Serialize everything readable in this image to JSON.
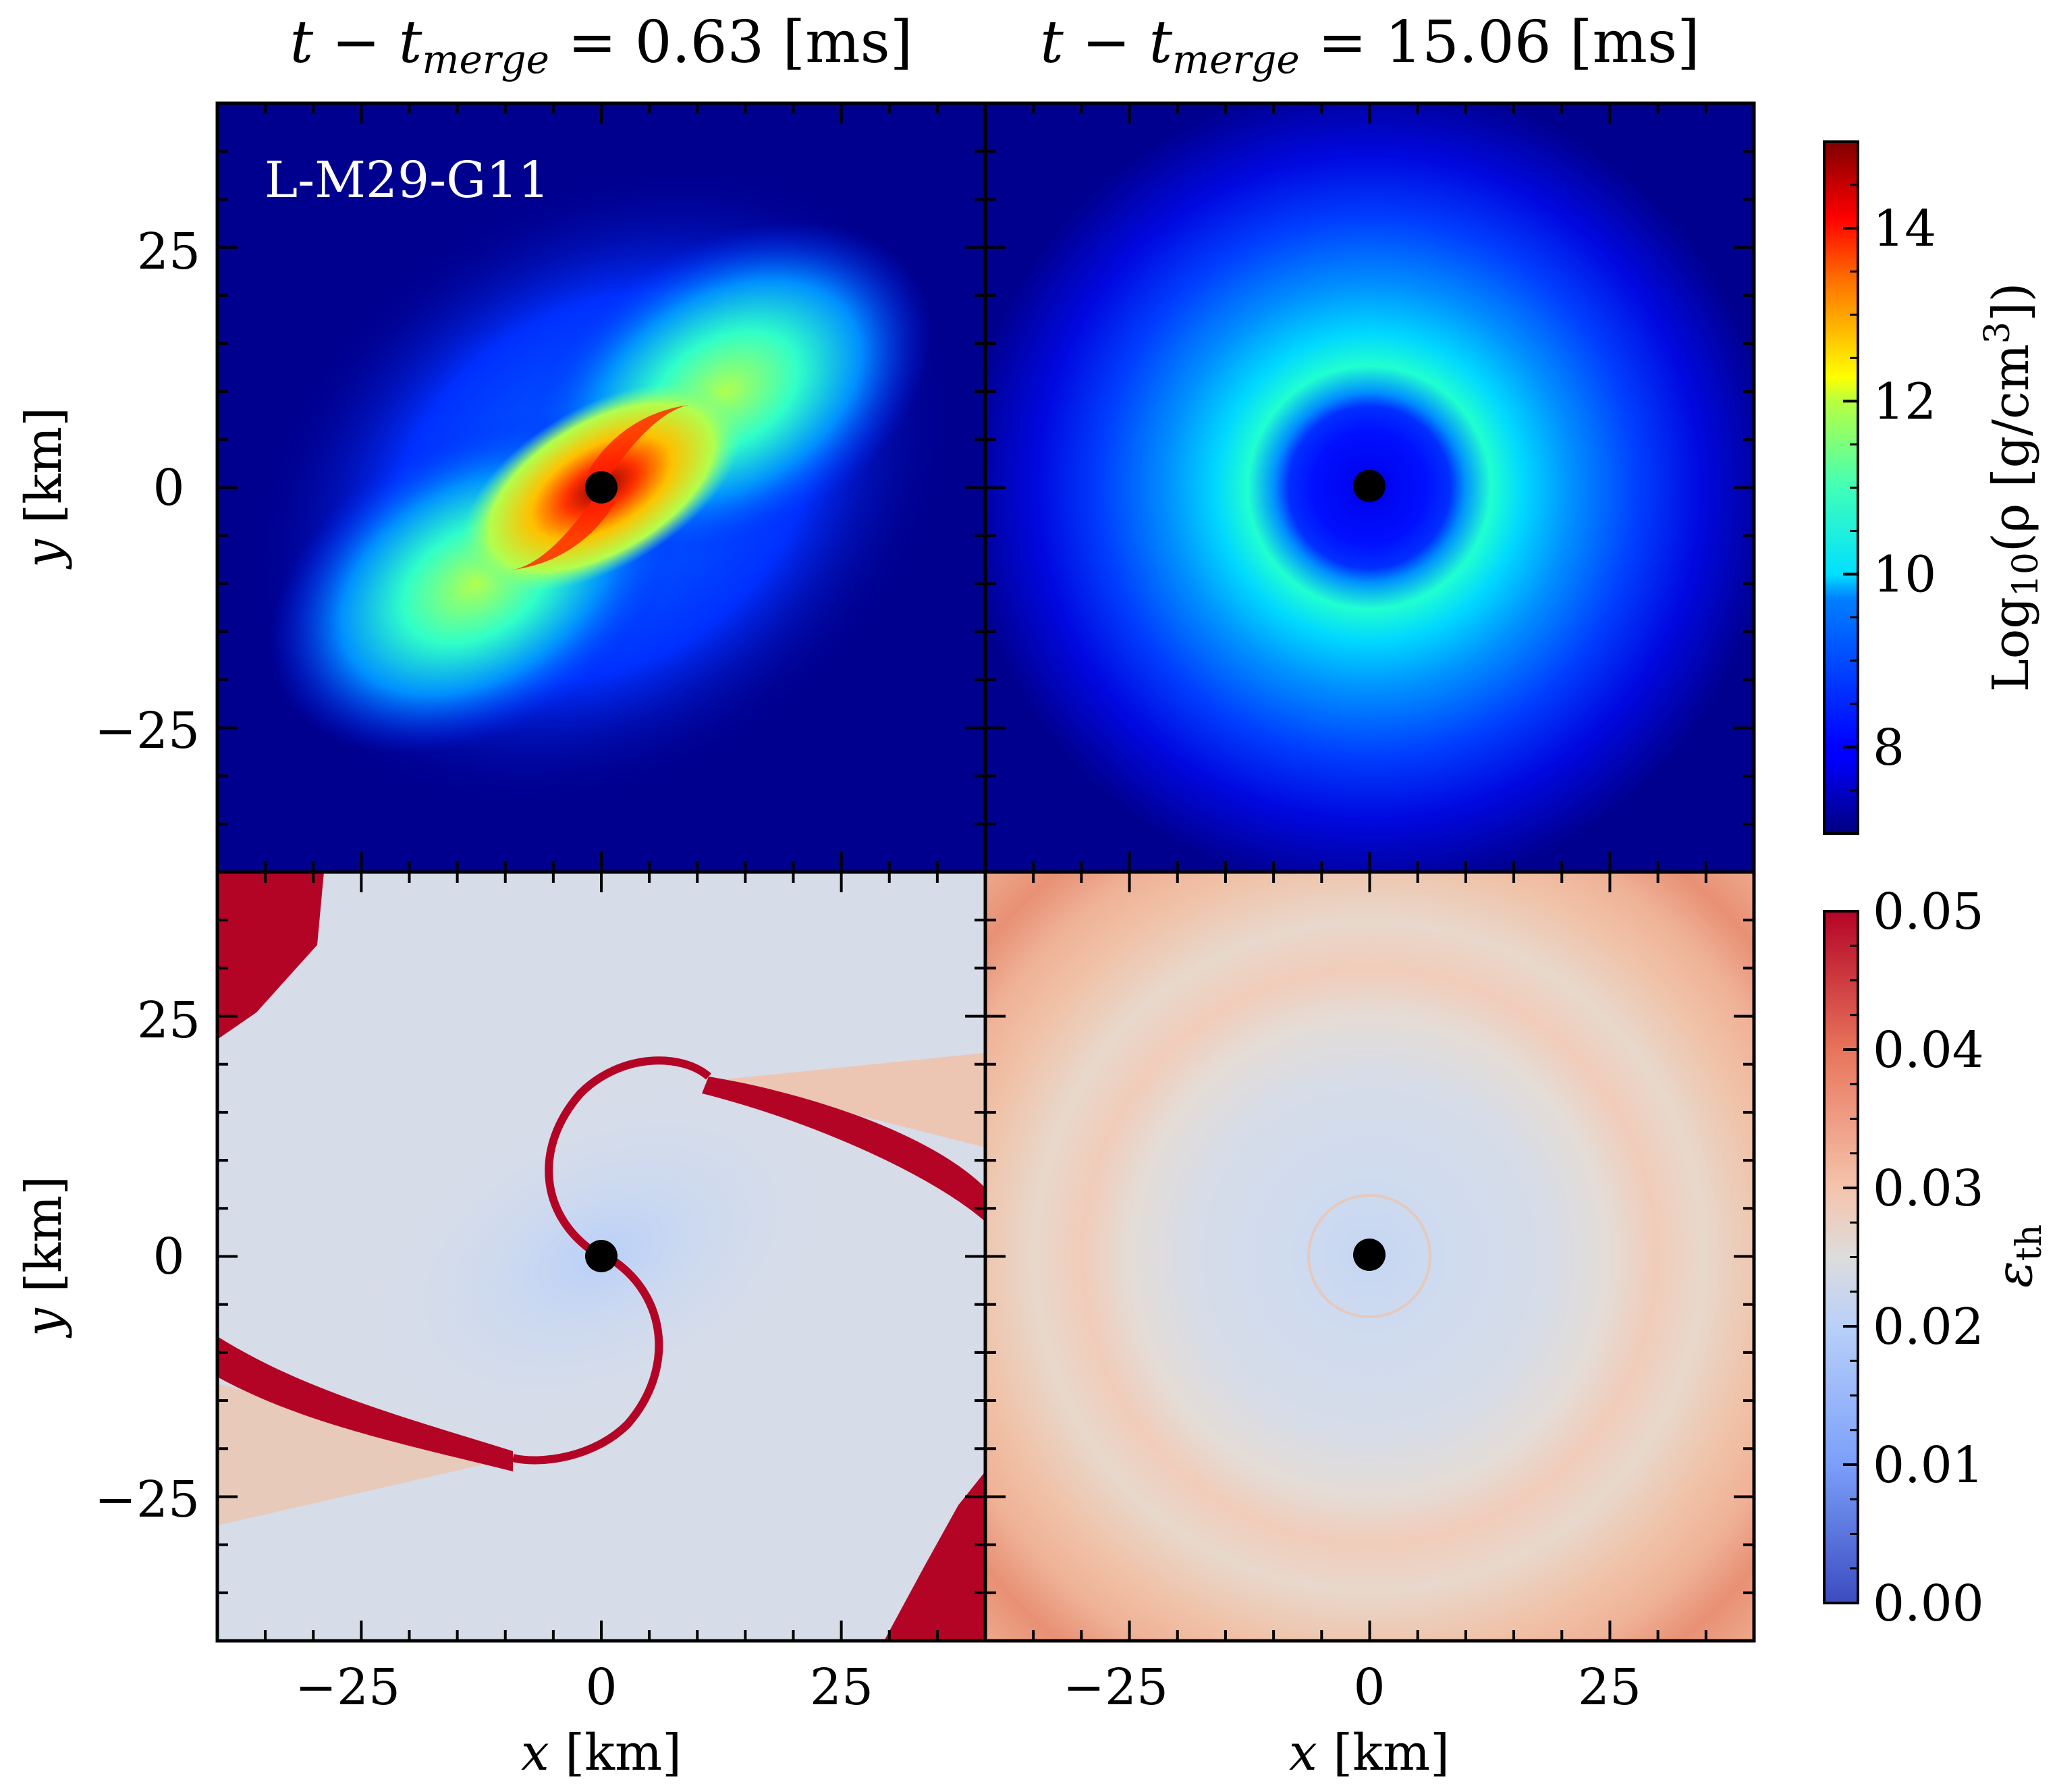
{
  "figure": {
    "titles": [
      "t − t<sub>merge</sub> = 0.63 [ms]",
      "t − t<sub>merge</sub> = 15.06 [ms]"
    ],
    "title_parts": [
      {
        "pre": "t − t",
        "sub": "merge",
        "post": " = 0.63 [ms]"
      },
      {
        "pre": "t − t",
        "sub": "merge",
        "post": " = 15.06 [ms]"
      }
    ],
    "annotation": "L-M29-G11",
    "colors": {
      "black_hole": "#000000",
      "frame": "#000000"
    }
  },
  "chart_data": [
    {
      "type": "heatmap",
      "panel": "top-left",
      "quantity": "Log10(rho [g/cm^3])",
      "time_after_merger_ms": 0.63,
      "structure": "two-armed spiral, dense core (~14) near black hole, arms ~11-12, background ~7",
      "xlim": [
        -40,
        40
      ],
      "ylim": [
        -40,
        40
      ],
      "xticks": [
        -25,
        0,
        25
      ],
      "yticks": [
        -25,
        0,
        25
      ],
      "ylabel": "y [km]",
      "xlabel": "",
      "black_hole_center_km": [
        0,
        0
      ]
    },
    {
      "type": "heatmap",
      "panel": "top-right",
      "quantity": "Log10(rho [g/cm^3])",
      "time_after_merger_ms": 15.06,
      "structure": "axisymmetric torus, peak ~10 at r ~ 15 km, low-density cavity ~8 inside r ~ 8 km",
      "xlim": [
        -40,
        40
      ],
      "ylim": [
        -40,
        40
      ],
      "black_hole_center_km": [
        0,
        0
      ]
    },
    {
      "type": "heatmap",
      "panel": "bottom-left",
      "quantity": "epsilon_th",
      "time_after_merger_ms": 0.63,
      "structure": "background ~0.02-0.025, thin spiral shock fronts ~0.05, hot corners ~0.05",
      "xlim": [
        -40,
        40
      ],
      "ylim": [
        -40,
        40
      ],
      "xticks": [
        -25,
        0,
        25
      ],
      "yticks": [
        -25,
        0,
        25
      ],
      "xlabel": "x [km]",
      "ylabel": "y [km]",
      "black_hole_center_km": [
        0,
        0
      ]
    },
    {
      "type": "heatmap",
      "panel": "bottom-right",
      "quantity": "epsilon_th",
      "time_after_merger_ms": 15.06,
      "structure": "concentric rings, ~0.02 inner, ~0.03-0.04 outer",
      "xlim": [
        -40,
        40
      ],
      "ylim": [
        -40,
        40
      ],
      "xticks": [
        -25,
        0,
        25
      ],
      "xlabel": "x [km]",
      "black_hole_center_km": [
        0,
        0
      ]
    }
  ],
  "axes": {
    "x_ticks": [
      "−25",
      "0",
      "25"
    ],
    "y_ticks": [
      "25",
      "0",
      "−25"
    ],
    "x_tick_values": [
      -25,
      0,
      25
    ],
    "y_tick_values": [
      25,
      0,
      -25
    ],
    "xlabel_var": "x",
    "ylabel_var": "y",
    "unit": " [km]",
    "range": [
      -40,
      40
    ]
  },
  "colorbars": {
    "density": {
      "label_parts": {
        "pre": "Log",
        "sub": "10",
        "mid": "(ρ [g/cm",
        "sup": "3",
        "post": "])"
      },
      "range": [
        7,
        15
      ],
      "ticks": [
        8,
        10,
        12,
        14
      ],
      "tick_labels": [
        "8",
        "10",
        "12",
        "14"
      ],
      "colormap": "jet"
    },
    "eps": {
      "label_main": "ε",
      "label_sub": "th",
      "range": [
        0.0,
        0.05
      ],
      "ticks": [
        0.0,
        0.01,
        0.02,
        0.03,
        0.04,
        0.05
      ],
      "tick_labels": [
        "0.00",
        "0.01",
        "0.02",
        "0.03",
        "0.04",
        "0.05"
      ],
      "colormap": "coolwarm"
    }
  }
}
